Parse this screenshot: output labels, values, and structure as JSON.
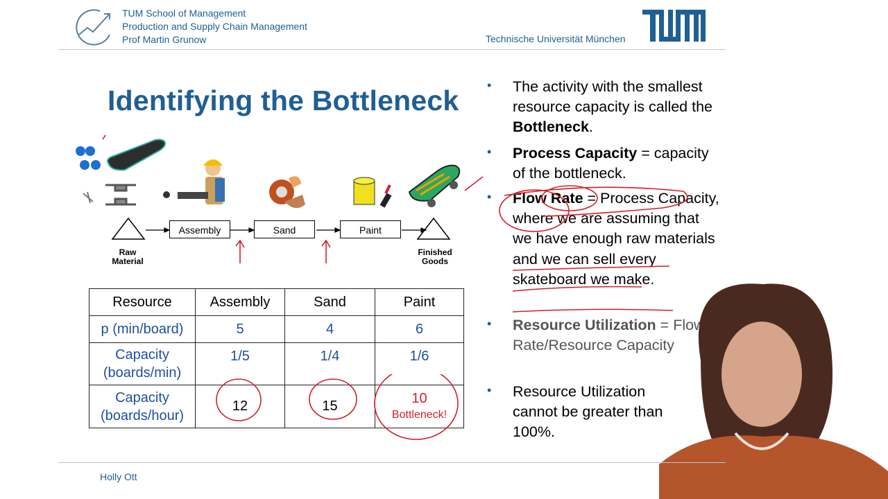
{
  "header": {
    "school": "TUM School of Management",
    "chair": "Production and Supply Chain Management",
    "professor": "Prof Martin Grunow",
    "university": "Technische Universität München",
    "logo_text": "TUM"
  },
  "slide": {
    "title": "Identifying the Bottleneck",
    "process": {
      "start_label_1": "Raw",
      "start_label_2": "Material",
      "steps": [
        "Assembly",
        "Sand",
        "Paint"
      ],
      "end_label_1": "Finished",
      "end_label_2": "Goods"
    },
    "table": {
      "headers": [
        "Resource",
        "Assembly",
        "Sand",
        "Paint"
      ],
      "rows": [
        {
          "label": "p (min/board)",
          "label_2": "",
          "values": [
            "5",
            "4",
            "6"
          ]
        },
        {
          "label": "Capacity",
          "label_2": "(boards/min)",
          "values": [
            "1/5",
            "1/4",
            "1/6"
          ]
        },
        {
          "label": "Capacity",
          "label_2": "(boards/hour)",
          "values": [
            "12",
            "15",
            "10"
          ],
          "note": "Bottleneck!"
        }
      ]
    },
    "bullets": {
      "b1_text": "The activity with the smallest resource capacity is called the ",
      "b1_bold": "Bottleneck",
      "b1_end": ".",
      "b2_bold": "Process Capacity",
      "b2_text": " = capacity of the bottleneck.",
      "b3_bold": "Flow Rate",
      "b3_text": " = Process Capacity, where we are assuming that we have enough raw materials and we can sell every skateboard we make.",
      "b4_bold": "Resource Utilization",
      "b4_text": " = Flow Rate/Resource Capacity",
      "b5_text": "Resource Utilization cannot be greater than 100%."
    }
  },
  "footer": {
    "presenter": "Holly Ott"
  },
  "colors": {
    "tum_blue": "#1f5f93",
    "table_blue": "#1f4fa0",
    "annotation_red": "#d0202a"
  }
}
